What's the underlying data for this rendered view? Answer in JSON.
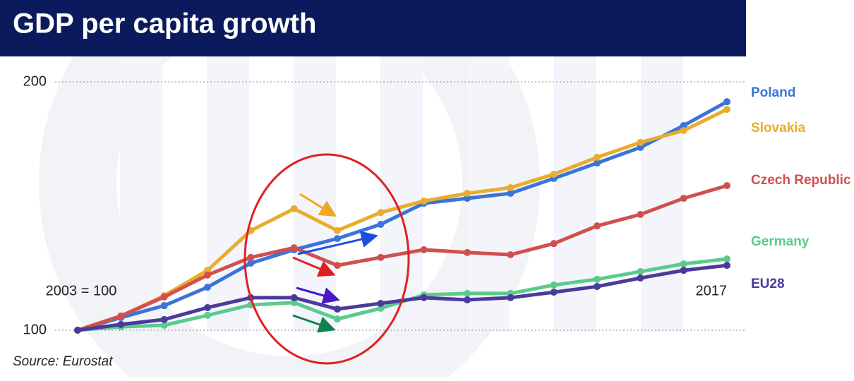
{
  "chart_data": {
    "type": "line",
    "title": "GDP per capita growth",
    "source": "Source: Eurostat",
    "categories": [
      "2003 = 100",
      null,
      null,
      null,
      null,
      null,
      null,
      null,
      null,
      null,
      null,
      null,
      null,
      null,
      null,
      "2017"
    ],
    "ylim": [
      100,
      200
    ],
    "yticks": [
      100,
      200
    ],
    "grid": true,
    "series": [
      {
        "name": "Poland",
        "color": "#3b74d9",
        "values": [
          100,
          105.1,
          109.9,
          117.3,
          127.0,
          132.4,
          136.9,
          142.6,
          151.1,
          153.1,
          155.1,
          161.1,
          167.3,
          173.6,
          182.4,
          192.0
        ]
      },
      {
        "name": "Slovakia",
        "color": "#e9ac2c",
        "values": [
          100,
          105.7,
          113.9,
          124.1,
          140.1,
          148.9,
          140.1,
          147.4,
          152.0,
          155.1,
          157.4,
          162.8,
          169.6,
          175.6,
          180.4,
          188.9
        ]
      },
      {
        "name": "Czech Republic",
        "color": "#d0504f",
        "values": [
          100,
          105.7,
          113.4,
          122.2,
          129.3,
          133.2,
          126.1,
          129.3,
          132.4,
          131.3,
          130.4,
          134.9,
          142.0,
          146.6,
          153.1,
          158.2
        ]
      },
      {
        "name": "Germany",
        "color": "#5acb8d",
        "values": [
          100,
          101.4,
          102.0,
          106.0,
          110.2,
          111.1,
          104.5,
          108.8,
          114.2,
          114.8,
          114.8,
          118.2,
          120.5,
          123.6,
          126.7,
          128.7
        ]
      },
      {
        "name": "EU28",
        "color": "#4b3a9c",
        "values": [
          100,
          102.3,
          104.3,
          109.1,
          113.1,
          113.1,
          108.5,
          110.8,
          113.1,
          112.2,
          113.1,
          115.3,
          117.6,
          121.0,
          124.1,
          126.1
        ]
      }
    ]
  }
}
